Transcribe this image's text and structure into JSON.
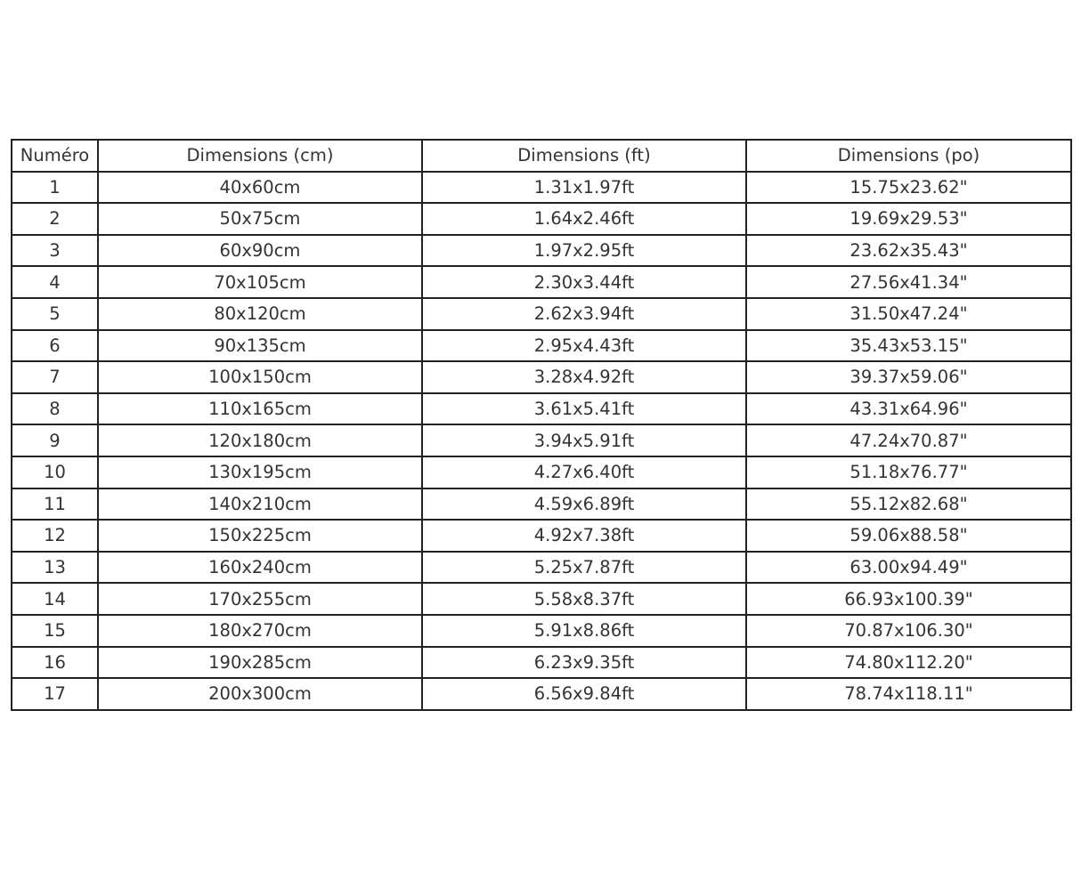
{
  "table": {
    "headers": [
      "Numéro",
      "Dimensions (cm)",
      "Dimensions (ft)",
      "Dimensions (po)"
    ],
    "rows": [
      [
        "1",
        "40x60cm",
        "1.31x1.97ft",
        "15.75x23.62\""
      ],
      [
        "2",
        "50x75cm",
        "1.64x2.46ft",
        "19.69x29.53\""
      ],
      [
        "3",
        "60x90cm",
        "1.97x2.95ft",
        "23.62x35.43\""
      ],
      [
        "4",
        "70x105cm",
        "2.30x3.44ft",
        "27.56x41.34\""
      ],
      [
        "5",
        "80x120cm",
        "2.62x3.94ft",
        "31.50x47.24\""
      ],
      [
        "6",
        "90x135cm",
        "2.95x4.43ft",
        "35.43x53.15\""
      ],
      [
        "7",
        "100x150cm",
        "3.28x4.92ft",
        "39.37x59.06\""
      ],
      [
        "8",
        "110x165cm",
        "3.61x5.41ft",
        "43.31x64.96\""
      ],
      [
        "9",
        "120x180cm",
        "3.94x5.91ft",
        "47.24x70.87\""
      ],
      [
        "10",
        "130x195cm",
        "4.27x6.40ft",
        "51.18x76.77\""
      ],
      [
        "11",
        "140x210cm",
        "4.59x6.89ft",
        "55.12x82.68\""
      ],
      [
        "12",
        "150x225cm",
        "4.92x7.38ft",
        "59.06x88.58\""
      ],
      [
        "13",
        "160x240cm",
        "5.25x7.87ft",
        "63.00x94.49\""
      ],
      [
        "14",
        "170x255cm",
        "5.58x8.37ft",
        "66.93x100.39\""
      ],
      [
        "15",
        "180x270cm",
        "5.91x8.86ft",
        "70.87x106.30\""
      ],
      [
        "16",
        "190x285cm",
        "6.23x9.35ft",
        "74.80x112.20\""
      ],
      [
        "17",
        "200x300cm",
        "6.56x9.84ft",
        "78.74x118.11\""
      ]
    ]
  }
}
